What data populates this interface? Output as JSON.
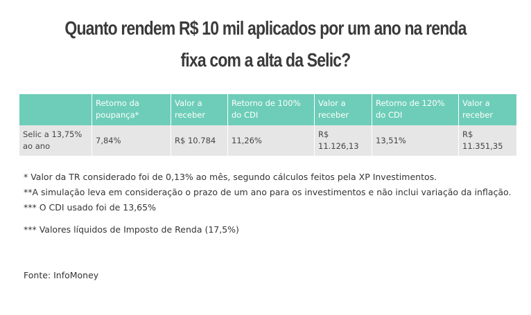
{
  "title": [
    "Quanto rendem R$ 10 mil aplicados por um ano na renda",
    "fixa com a alta da Selic?"
  ],
  "chart_data": {
    "type": "table",
    "columns": [
      "",
      "Retorno da poupança*",
      "Valor a receber",
      "Retorno de 100% do CDI",
      "Valor a receber",
      "Retorno de 120% do CDI",
      "Valor a receber"
    ],
    "rows": [
      [
        "Selic a 13,75% ao ano",
        "7,84%",
        "R$ 10.784",
        "11,26%",
        "R$ 11.126,13",
        "13,51%",
        "R$ 11.351,35"
      ]
    ],
    "colors": {
      "header": "#6dcdb8",
      "row": "#e6e6e6"
    }
  },
  "notes": [
    "* Valor da TR considerado foi de 0,13% ao mês, segundo cálculos feitos pela XP Investimentos.",
    "**A simulação leva em consideração o prazo de um ano para os investimentos e não inclui variação da inflação.",
    "*** O CDI usado foi de 13,65%",
    "*** Valores líquidos de Imposto de Renda (17,5%)"
  ],
  "source": "Fonte: InfoMoney"
}
